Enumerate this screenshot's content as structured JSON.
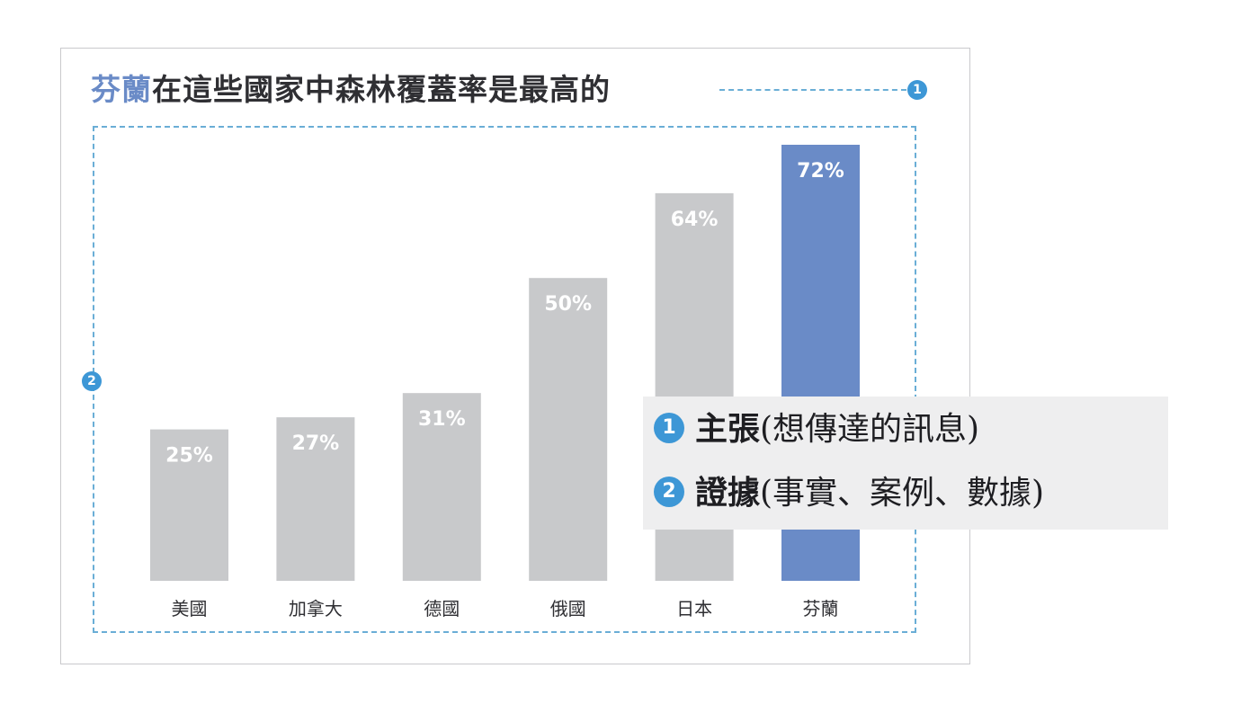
{
  "title": {
    "highlight": "芬蘭",
    "rest": "在這些國家中森林覆蓋率是最高的"
  },
  "badges": {
    "one": "1",
    "two": "2"
  },
  "legend": {
    "items": [
      {
        "number": "1",
        "term": "主張",
        "desc": "(想傳達的訊息)"
      },
      {
        "number": "2",
        "term": "證據",
        "desc": "(事實、案例、數據)"
      }
    ]
  },
  "colors": {
    "bar_default": "#c8c9cb",
    "bar_highlight": "#6a8bc7",
    "title_highlight": "#6a8bc7",
    "annotation": "#3d97d6",
    "dashed_border": "#6aaed6"
  },
  "chart_data": {
    "type": "bar",
    "title": "芬蘭在這些國家中森林覆蓋率是最高的",
    "categories": [
      "美國",
      "加拿大",
      "德國",
      "俄國",
      "日本",
      "芬蘭"
    ],
    "values": [
      25,
      27,
      31,
      50,
      64,
      72
    ],
    "value_labels": [
      "25%",
      "27%",
      "31%",
      "50%",
      "64%",
      "72%"
    ],
    "highlight_index": 5,
    "xlabel": "",
    "ylabel": "",
    "ylim": [
      0,
      72
    ],
    "grid": false,
    "legend": "none"
  }
}
